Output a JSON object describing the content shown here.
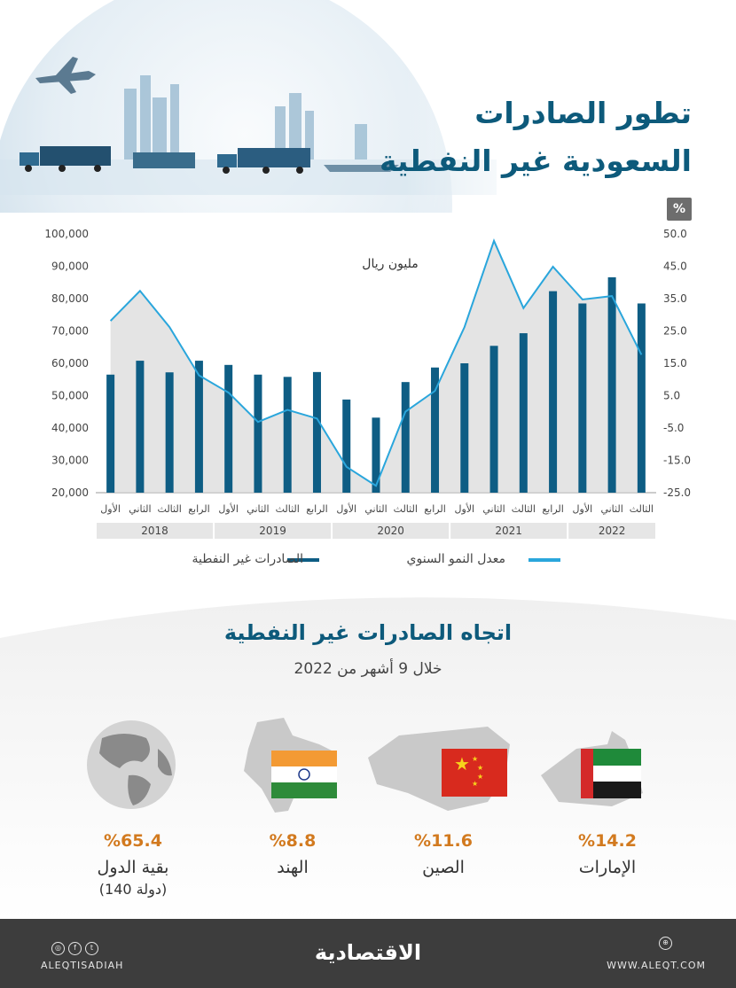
{
  "header": {
    "title_line1": "تطور الصادرات",
    "title_line2": "السعودية غير النفطية"
  },
  "chart_data": {
    "type": "bar",
    "unit_label": "مليون ريال",
    "right_axis_unit": "%",
    "categories": [
      "الأول",
      "الثاني",
      "الثالث",
      "الرابع",
      "الأول",
      "الثاني",
      "الثالث",
      "الرابع",
      "الأول",
      "الثاني",
      "الثالث",
      "الرابع",
      "الأول",
      "الثاني",
      "الثالث",
      "الرابع",
      "الأول",
      "الثاني",
      "الثالث"
    ],
    "years": [
      {
        "label": "2018",
        "quarters": 4
      },
      {
        "label": "2019",
        "quarters": 4
      },
      {
        "label": "2020",
        "quarters": 4
      },
      {
        "label": "2021",
        "quarters": 4
      },
      {
        "label": "2022",
        "quarters": 3
      }
    ],
    "series": [
      {
        "name": "الصادرات غير النفطية",
        "axis": "left",
        "color": "#0e5d84",
        "values": [
          56500,
          60800,
          57200,
          60800,
          59500,
          56500,
          55800,
          57300,
          48800,
          43200,
          54200,
          58700,
          60000,
          65400,
          69300,
          82300,
          78500,
          86600,
          78500
        ]
      },
      {
        "name": "معدل النمو السنوي",
        "axis": "right",
        "color": "#2aa6dc",
        "values": [
          24.8,
          33.5,
          23.0,
          9.0,
          4.0,
          -4.5,
          -1.0,
          -3.5,
          -17.5,
          -23.0,
          -1.5,
          4.5,
          23.0,
          48.0,
          28.5,
          40.5,
          31.0,
          32.0,
          15.0
        ]
      }
    ],
    "y_left": {
      "min": 20000,
      "max": 100000,
      "ticks": [
        "100,000",
        "90,000",
        "80,000",
        "70,000",
        "60,000",
        "50,000",
        "40,000",
        "30,000",
        "20,000"
      ]
    },
    "y_right": {
      "min": -25,
      "max": 50,
      "ticks": [
        "50.0",
        "45.0",
        "35.0",
        "25.0",
        "15.0",
        "5.0",
        "-5.0",
        "-15.0",
        "-25.0"
      ]
    },
    "legend_placement": "bottom"
  },
  "section2": {
    "title": "اتجاه الصادرات غير النفطية",
    "subtitle": "خلال 9 أشهر من 2022",
    "countries": [
      {
        "pct": "%14.2",
        "name": "الإمارات",
        "name2": "",
        "icon": "uae-map-flag-icon"
      },
      {
        "pct": "%11.6",
        "name": "الصين",
        "name2": "",
        "icon": "china-map-flag-icon"
      },
      {
        "pct": "%8.8",
        "name": "الهند",
        "name2": "",
        "icon": "india-map-flag-icon"
      },
      {
        "pct": "%65.4",
        "name": "بقية الدول",
        "name2": "(140 دولة)",
        "icon": "globe-icon"
      }
    ]
  },
  "footer": {
    "logo": "الاقتصادية",
    "handle": "ALEQTISADIAH",
    "site": "WWW.ALEQT.COM"
  }
}
